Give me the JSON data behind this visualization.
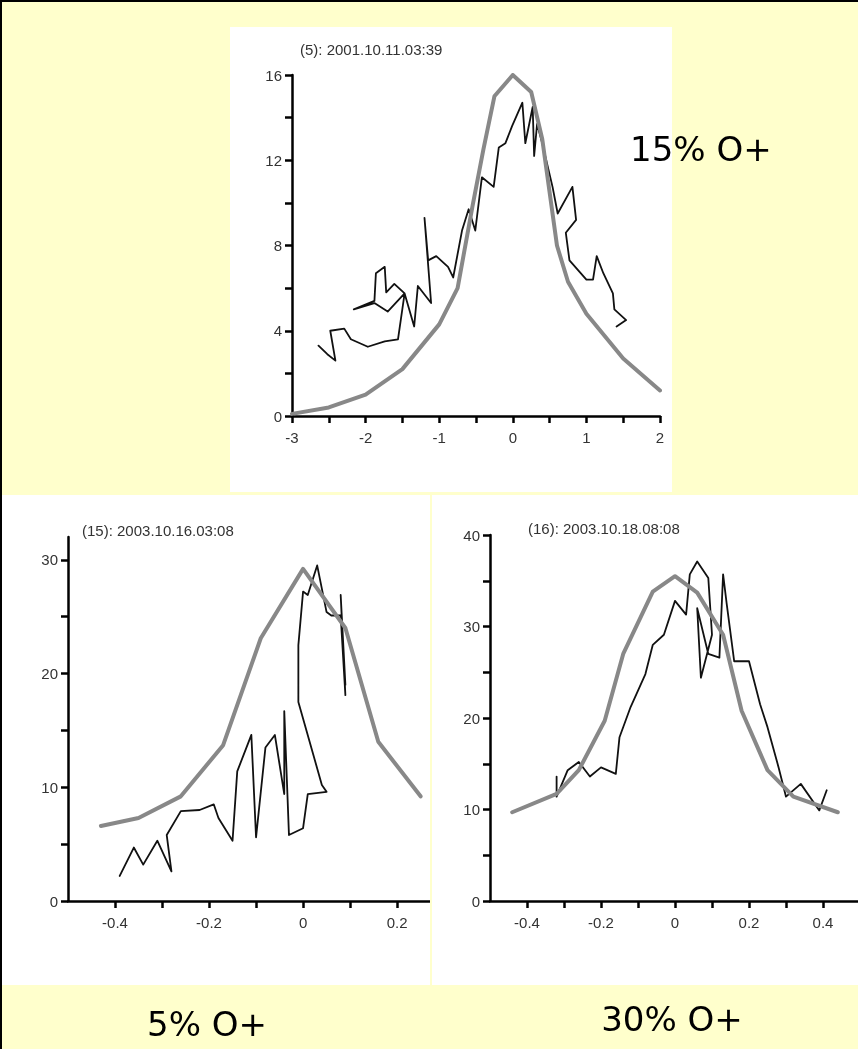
{
  "chart_data": [
    {
      "type": "line",
      "title": "(5): 2001.10.11.03:39",
      "annotations": [
        "15% O+"
      ],
      "xlim": [
        -3,
        2
      ],
      "xticks": [
        -3,
        {
          "value": -2.5,
          "label": null
        },
        -2,
        {
          "value": -1.5,
          "label": null
        },
        -1,
        {
          "value": -0.5,
          "label": null
        },
        0,
        {
          "value": 0.5,
          "label": null
        },
        1,
        {
          "value": 1.5,
          "label": null
        },
        2
      ],
      "ylim": [
        0,
        16
      ],
      "yticks": [
        0,
        {
          "value": 2,
          "label": null
        },
        4,
        {
          "value": 6,
          "label": null
        },
        8,
        {
          "value": 10,
          "label": null
        },
        12,
        {
          "value": 14,
          "label": null
        },
        16
      ],
      "series": [
        {
          "color": "#111111",
          "x": [
            -2.64,
            -2.52,
            -2.41,
            -2.48,
            -2.29,
            -2.2,
            -1.97,
            -1.74,
            -1.56,
            -1.47,
            -1.61,
            -1.72,
            -1.74,
            -1.86,
            -1.88,
            -2.02,
            -2.16,
            -1.88,
            -1.7,
            -1.47,
            -1.34,
            -1.29,
            -1.11,
            -1.2,
            -1.15,
            -1.04,
            -0.88,
            -0.81,
            -0.69,
            -0.6,
            -0.51,
            -0.42,
            -0.26,
            -0.19,
            -0.1,
            -0.01,
            0.13,
            0.17,
            0.27,
            0.29,
            0.33,
            0.4,
            0.54,
            0.61,
            0.81,
            0.86,
            0.72,
            0.77,
            1.0,
            1.09,
            1.14,
            1.23,
            1.36,
            1.38,
            1.54,
            1.41
          ],
          "values": [
            3.3,
            2.9,
            2.6,
            4.0,
            4.1,
            3.6,
            3.25,
            3.5,
            3.6,
            5.75,
            6.2,
            5.8,
            7.0,
            6.7,
            5.4,
            5.2,
            5.0,
            5.3,
            4.9,
            5.75,
            4.2,
            6.1,
            5.3,
            9.3,
            7.3,
            7.5,
            7.0,
            6.5,
            8.7,
            9.7,
            8.7,
            11.2,
            10.75,
            12.6,
            12.8,
            13.6,
            14.7,
            12.8,
            14.5,
            12.2,
            13.7,
            12.8,
            10.75,
            9.5,
            10.75,
            9.2,
            8.6,
            7.3,
            6.4,
            6.4,
            7.5,
            6.7,
            5.75,
            5.0,
            4.5,
            4.2
          ]
        },
        {
          "color": "#888888",
          "x": [
            -3,
            -2.5,
            -2,
            -1.5,
            -1,
            -0.75,
            -0.55,
            -0.4,
            -0.25,
            0,
            0.25,
            0.4,
            0.5,
            0.6,
            0.75,
            1,
            1.5,
            2
          ],
          "values": [
            0.1,
            0.4,
            1.0,
            2.2,
            4.3,
            6.0,
            9.8,
            12.5,
            15.0,
            16.0,
            15.2,
            13.0,
            10.5,
            8.0,
            6.3,
            4.8,
            2.7,
            1.2
          ]
        }
      ]
    },
    {
      "type": "line",
      "title": "(15): 2003.10.16.03:08",
      "annotations": [
        "5% O+"
      ],
      "xlim": [
        -0.5,
        0.27
      ],
      "xticks": [
        -0.4,
        {
          "value": -0.3,
          "label": null
        },
        -0.2,
        {
          "value": -0.1,
          "label": null
        },
        0,
        {
          "value": 0.1,
          "label": null
        },
        0.2
      ],
      "ylim": [
        0,
        32
      ],
      "yticks": [
        0,
        {
          "value": 5,
          "label": null
        },
        10,
        {
          "value": 15,
          "label": null
        },
        20,
        {
          "value": 25,
          "label": null
        },
        30
      ],
      "series": [
        {
          "color": "#111111",
          "x": [
            -0.39,
            -0.36,
            -0.34,
            -0.31,
            -0.28,
            -0.29,
            -0.26,
            -0.22,
            -0.19,
            -0.18,
            -0.15,
            -0.14,
            -0.11,
            -0.1,
            -0.08,
            -0.06,
            -0.04,
            -0.04,
            -0.03,
            0.0,
            0.01,
            0.05,
            0.04,
            -0.01,
            -0.01,
            0.0,
            0.01,
            0.03,
            0.05,
            0.06,
            0.08,
            0.09,
            0.08,
            0.09
          ],
          "values": [
            2.2,
            4.7,
            3.2,
            5.3,
            2.6,
            5.8,
            7.9,
            8.0,
            8.5,
            7.3,
            5.3,
            11.4,
            14.6,
            5.6,
            13.5,
            14.6,
            9.4,
            16.7,
            5.8,
            6.4,
            9.4,
            9.6,
            10.2,
            17.5,
            22.5,
            27.2,
            26.9,
            29.5,
            25.4,
            25.1,
            25.1,
            18.1,
            26.9,
            19.0
          ]
        },
        {
          "color": "#888888",
          "x": [
            -0.43,
            -0.35,
            -0.26,
            -0.17,
            -0.09,
            0.0,
            0.09,
            0.16,
            0.25
          ],
          "values": [
            6.6,
            7.3,
            9.2,
            13.7,
            23.1,
            29.2,
            24.0,
            14.0,
            9.2
          ]
        }
      ]
    },
    {
      "type": "line",
      "title": "(16): 2003.10.18.08:08",
      "annotations": [
        "30% O+"
      ],
      "xlim": [
        -0.5,
        0.5
      ],
      "xticks": [
        -0.4,
        {
          "value": -0.3,
          "label": null
        },
        -0.2,
        {
          "value": -0.1,
          "label": null
        },
        0,
        {
          "value": 0.1,
          "label": null
        },
        0.2,
        {
          "value": 0.3,
          "label": null
        },
        0.4
      ],
      "ylim": [
        0,
        40
      ],
      "yticks": [
        0,
        {
          "value": 5,
          "label": null
        },
        10,
        {
          "value": 15,
          "label": null
        },
        20,
        {
          "value": 25,
          "label": null
        },
        30,
        {
          "value": 35,
          "label": null
        },
        40
      ],
      "series": [
        {
          "color": "#111111",
          "x": [
            -0.32,
            -0.32,
            -0.29,
            -0.26,
            -0.23,
            -0.2,
            -0.16,
            -0.15,
            -0.12,
            -0.08,
            -0.06,
            -0.03,
            0.0,
            0.03,
            0.04,
            0.06,
            0.09,
            0.1,
            0.07,
            0.06,
            0.09,
            0.12,
            0.13,
            0.14,
            0.16,
            0.2,
            0.23,
            0.25,
            0.28,
            0.3,
            0.34,
            0.39,
            0.41
          ],
          "values": [
            13.6,
            11.4,
            14.3,
            15.2,
            13.6,
            14.6,
            13.9,
            17.9,
            21.2,
            24.8,
            28.0,
            29.1,
            32.8,
            31.3,
            35.7,
            37.1,
            35.3,
            29.1,
            24.4,
            32.0,
            27.0,
            26.6,
            35.7,
            32.4,
            26.2,
            26.2,
            21.5,
            19.0,
            14.6,
            11.4,
            12.8,
            9.9,
            12.1
          ]
        },
        {
          "color": "#888888",
          "x": [
            -0.44,
            -0.32,
            -0.26,
            -0.19,
            -0.14,
            -0.06,
            0.0,
            0.06,
            0.13,
            0.18,
            0.25,
            0.32,
            0.44
          ],
          "values": [
            9.7,
            11.7,
            14.3,
            19.7,
            27.0,
            33.8,
            35.5,
            33.7,
            29.1,
            20.8,
            14.3,
            11.4,
            9.7
          ]
        }
      ]
    }
  ]
}
